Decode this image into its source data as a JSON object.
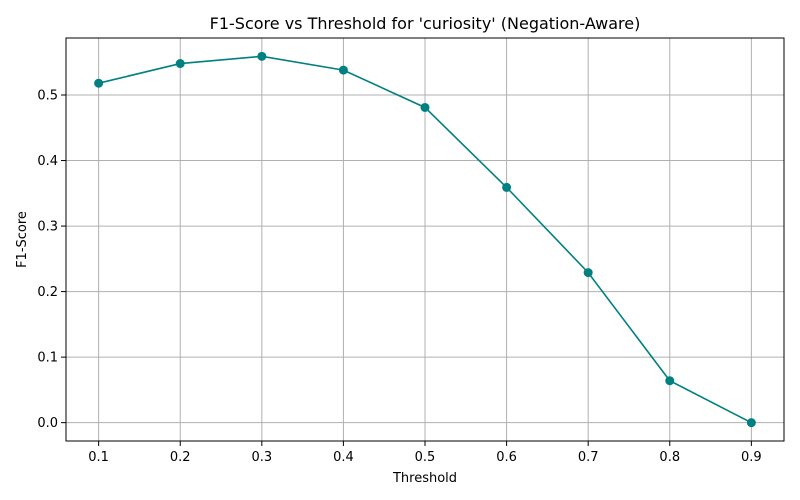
{
  "chart_data": {
    "type": "line",
    "title": "F1-Score vs Threshold for 'curiosity' (Negation-Aware)",
    "xlabel": "Threshold",
    "ylabel": "F1-Score",
    "x": [
      0.1,
      0.2,
      0.3,
      0.4,
      0.5,
      0.6,
      0.7,
      0.8,
      0.9
    ],
    "series": [
      {
        "values": [
          0.518,
          0.548,
          0.559,
          0.538,
          0.481,
          0.359,
          0.229,
          0.064,
          0.0
        ],
        "color": "#008080",
        "marker": "circle"
      }
    ],
    "xlim": [
      0.06,
      0.94
    ],
    "ylim": [
      -0.028,
      0.587
    ],
    "xticks": [
      "0.1",
      "0.2",
      "0.3",
      "0.4",
      "0.5",
      "0.6",
      "0.7",
      "0.8",
      "0.9"
    ],
    "yticks": [
      "0.0",
      "0.1",
      "0.2",
      "0.3",
      "0.4",
      "0.5"
    ],
    "grid": true,
    "legend": "none"
  }
}
